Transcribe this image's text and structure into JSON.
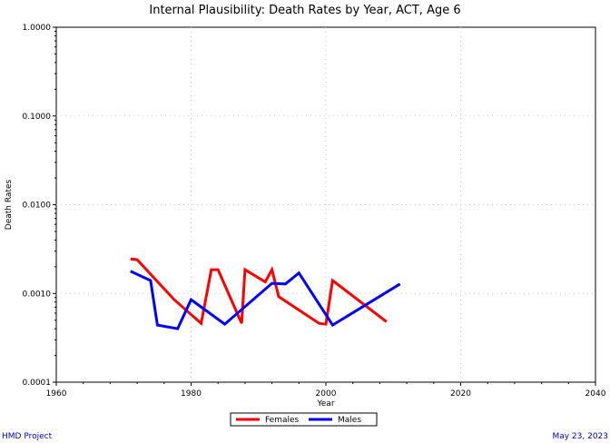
{
  "chart_data": {
    "type": "line",
    "title": "Internal Plausibility: Death Rates by Year, ACT, Age 6",
    "xlabel": "Year",
    "ylabel": "Death Rates",
    "xlim": [
      1960,
      2040
    ],
    "ylim": [
      0.0001,
      1.0
    ],
    "yscale": "log",
    "xticks": [
      "1960",
      "1980",
      "2000",
      "2020",
      "2040"
    ],
    "yticks": [
      "0.0001",
      "0.0010",
      "0.0100",
      "0.1000",
      "1.0000"
    ],
    "grid": true,
    "legend_position": "bottom",
    "series": [
      {
        "name": "Females",
        "color": "#ff0000",
        "points": [
          [
            1971,
            0.00245
          ],
          [
            1972,
            0.0024
          ],
          [
            1977.5,
            0.00085
          ],
          [
            1981.5,
            0.00046
          ],
          [
            1983,
            0.00185
          ],
          [
            1984,
            0.00185
          ],
          [
            1987.5,
            0.00046
          ],
          [
            1988,
            0.00185
          ],
          [
            1991,
            0.00135
          ],
          [
            1992,
            0.00185
          ],
          [
            1993,
            0.00092
          ],
          [
            1999,
            0.00046
          ],
          [
            2000,
            0.00045
          ],
          [
            2001,
            0.0014
          ],
          [
            2009,
            0.00048
          ]
        ]
      },
      {
        "name": "Males",
        "color": "#0000ff",
        "points": [
          [
            1971,
            0.00178
          ],
          [
            1974,
            0.0014
          ],
          [
            1975,
            0.00044
          ],
          [
            1978,
            0.0004
          ],
          [
            1980,
            0.00085
          ],
          [
            1985,
            0.00045
          ],
          [
            1992,
            0.0013
          ],
          [
            1994,
            0.00128
          ],
          [
            1996,
            0.0017
          ],
          [
            2001,
            0.00044
          ],
          [
            2011,
            0.00128
          ]
        ]
      }
    ]
  },
  "footer": {
    "left": "HMD Project",
    "right": "May 23, 2023"
  }
}
